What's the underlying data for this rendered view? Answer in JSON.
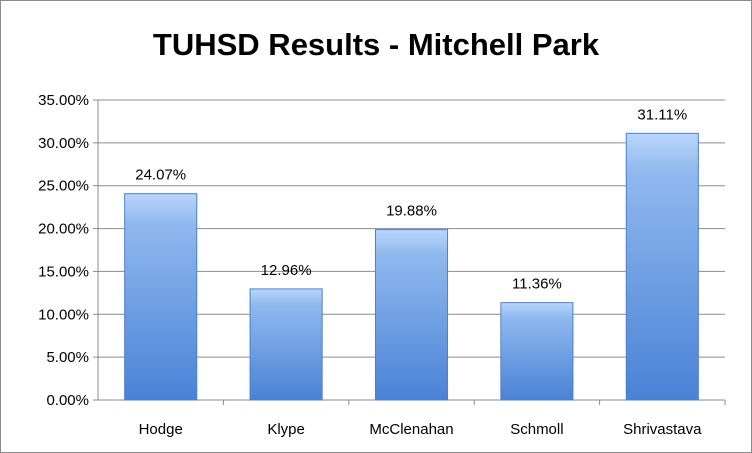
{
  "chart_data": {
    "type": "bar",
    "title": "TUHSD Results - Mitchell Park",
    "xlabel": "",
    "ylabel": "",
    "categories": [
      "Hodge",
      "Klype",
      "McClenahan",
      "Schmoll",
      "Shrivastava"
    ],
    "values": [
      24.07,
      12.96,
      19.88,
      11.36,
      31.11
    ],
    "data_labels": [
      "24.07%",
      "12.96%",
      "19.88%",
      "11.36%",
      "31.11%"
    ],
    "ylim": [
      0,
      35
    ],
    "y_ticks": [
      0,
      5,
      10,
      15,
      20,
      25,
      30,
      35
    ],
    "y_tick_labels": [
      "0.00%",
      "5.00%",
      "10.00%",
      "15.00%",
      "20.00%",
      "25.00%",
      "30.00%",
      "35.00%"
    ],
    "grid": true,
    "legend": "none",
    "colors": {
      "bar_light": "#b9d6fb",
      "bar_mid": "#8fb8ee",
      "bar_dark": "#4a82d6",
      "bar_edge": "#4f7fc9",
      "gridline": "#8c8c8c",
      "text": "#000000"
    }
  }
}
